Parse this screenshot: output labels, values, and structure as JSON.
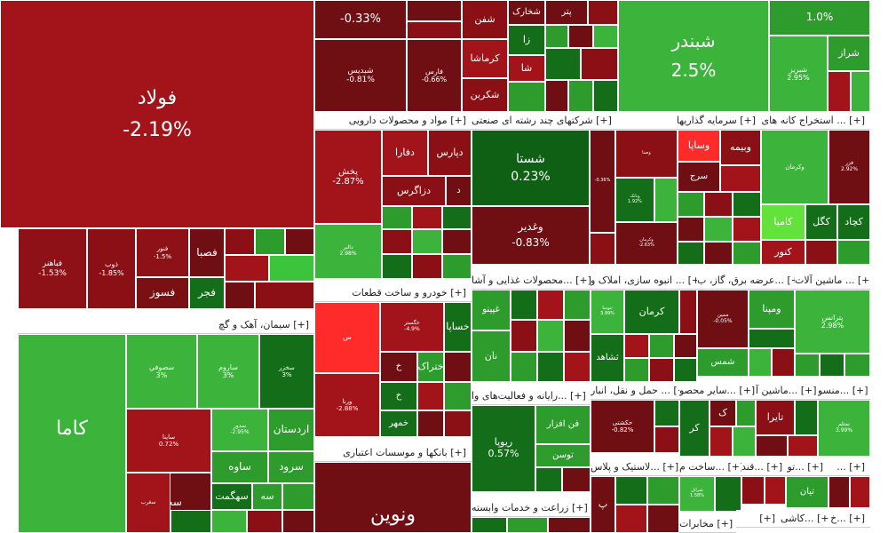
{
  "colors": {
    "deep_red": "#6f0f14",
    "red": "#a3141a",
    "bright_red": "#ff2b2b",
    "dark_green": "#0f5f14",
    "green": "#2d9c2d",
    "bright_green": "#3cc43c",
    "lime": "#62e23b"
  },
  "sections": [
    {
      "id": "pharma",
      "title": "مواد و محصولات دارویی [+]"
    },
    {
      "id": "multi",
      "title": "شرکتهای چند رشته ای صنعتی [+]"
    },
    {
      "id": "invest",
      "title": "سرمایه گذاریها [+]"
    },
    {
      "id": "mining",
      "title": "استخراج کانه های ... [+]"
    },
    {
      "id": "cement",
      "title": "سیمان، آهک و گچ [+]"
    },
    {
      "id": "auto",
      "title": "خودرو و ساخت قطعات [+]"
    },
    {
      "id": "food",
      "title": "محصولات غذایی و آشا... [+]"
    },
    {
      "id": "construction",
      "title": "انبوه سازی، املاک و ... [+]"
    },
    {
      "id": "electric",
      "title": "عرضه برق، گاز، ب... [+]"
    },
    {
      "id": "machinery",
      "title": "ماشین آلات ... [+]"
    },
    {
      "id": "it",
      "title": "رایانه و فعالیت‌های وا... [+]"
    },
    {
      "id": "transport",
      "title": "حمل و نقل، انبار ... [+]"
    },
    {
      "id": "other_products",
      "title": "سایر محصو... [+]"
    },
    {
      "id": "machinery2",
      "title": "ماشین آ... [+]"
    },
    {
      "id": "textile",
      "title": "منسو... [+]"
    },
    {
      "id": "banks",
      "title": "بانکها و موسسات اعتباری [+]"
    },
    {
      "id": "plastic",
      "title": "لاستیک و پلاس... [+]"
    },
    {
      "id": "construction2",
      "title": "ساخت م... [+]"
    },
    {
      "id": "sugar",
      "title": "قند... [+]"
    },
    {
      "id": "tile",
      "title": "کاشی... [+]"
    },
    {
      "id": "agri",
      "title": "زراعت و خدمات وابسته [+]"
    },
    {
      "id": "telecom",
      "title": "مخابرات [+]"
    },
    {
      "id": "kh",
      "title": "خ... [+]"
    },
    {
      "id": "to",
      "title": "تو... [+]"
    }
  ],
  "tiles": [
    {
      "id": "foolad",
      "name": "فولاد",
      "change": "-2.19%"
    },
    {
      "id": "shebandar",
      "name": "شبندر",
      "change": "2.5%"
    },
    {
      "id": "ghamrest",
      "name": "",
      "change": "-0.33%"
    },
    {
      "id": "top_right",
      "name": "",
      "change": "1.0%"
    },
    {
      "id": "shebris",
      "name": "شبریز",
      "change": "2.95%"
    },
    {
      "id": "shiraz",
      "name": "شراز",
      "change": ""
    },
    {
      "id": "shekaf",
      "name": "شفن",
      "change": ""
    },
    {
      "id": "shekhark",
      "name": "شخارک",
      "change": ""
    },
    {
      "id": "petr",
      "name": "پتر",
      "change": ""
    },
    {
      "id": "shedis",
      "name": "شبدیس",
      "change": "-0.81%"
    },
    {
      "id": "fars",
      "name": "فارس",
      "change": "-0.66%"
    },
    {
      "id": "kermasha",
      "name": "کرماشا",
      "change": ""
    },
    {
      "id": "shekarbon",
      "name": "شکربن",
      "change": ""
    },
    {
      "id": "za",
      "name": "زا",
      "change": ""
    },
    {
      "id": "sha",
      "name": "شا",
      "change": ""
    },
    {
      "id": "fakhoz",
      "name": "فباهنر",
      "change": "-1.53%"
    },
    {
      "id": "zob",
      "name": "ذوب",
      "change": "-1.85%"
    },
    {
      "id": "faslab",
      "name": "فصبا",
      "change": ""
    },
    {
      "id": "fasoz",
      "name": "فسوز",
      "change": ""
    },
    {
      "id": "fajr",
      "name": "فجر",
      "change": ""
    },
    {
      "id": "fnoor",
      "name": "فنور",
      "change": "-1.5%"
    },
    {
      "id": "dpakhsh",
      "name": "پخش",
      "change": "-2.87%"
    },
    {
      "id": "dfara",
      "name": "دفارا",
      "change": ""
    },
    {
      "id": "dpars",
      "name": "دپارس",
      "change": ""
    },
    {
      "id": "dzagros",
      "name": "دزاگرس",
      "change": ""
    },
    {
      "id": "dd",
      "name": "د",
      "change": ""
    },
    {
      "id": "dalbor",
      "name": "دالبر",
      "change": "2.98%"
    },
    {
      "id": "shasta",
      "name": "شستا",
      "change": "0.23%"
    },
    {
      "id": "vaghadir",
      "name": "وغدیر",
      "change": "-0.83%"
    },
    {
      "id": "vasapa",
      "name": "وساپا",
      "change": ""
    },
    {
      "id": "vasena",
      "name": "وصنا",
      "change": ""
    },
    {
      "id": "vabimeh",
      "name": "وبیمه",
      "change": "-2.93%"
    },
    {
      "id": "sarj",
      "name": "سرج",
      "change": ""
    },
    {
      "id": "vapars",
      "name": "وبانک",
      "change": "1.92%"
    },
    {
      "id": "vakerman",
      "name": "وکرمان",
      "change": ""
    },
    {
      "id": "fazar",
      "name": "فزر",
      "change": "2.92%"
    },
    {
      "id": "kamaia",
      "name": "کامیا",
      "change": "-0.09%"
    },
    {
      "id": "kegel",
      "name": "کگل",
      "change": ""
    },
    {
      "id": "kechad",
      "name": "کچاد",
      "change": ""
    },
    {
      "id": "kenor",
      "name": "کنور",
      "change": ""
    },
    {
      "id": "kama",
      "name": "کاما",
      "change": ""
    },
    {
      "id": "sofi",
      "name": "سصوفي",
      "change": "3%"
    },
    {
      "id": "saroom",
      "name": "ساروم",
      "change": "3%"
    },
    {
      "id": "sakhzar",
      "name": "سخزر",
      "change": "3%"
    },
    {
      "id": "sanik",
      "name": "ساینا",
      "change": "0.72%"
    },
    {
      "id": "sadoragh",
      "name": "سدور",
      "change": "-2.95%"
    },
    {
      "id": "sardasht",
      "name": "اردستان",
      "change": "2.95%"
    },
    {
      "id": "sakhooz",
      "name": "سخوز",
      "change": ""
    },
    {
      "id": "saveh",
      "name": "ساوه",
      "change": ""
    },
    {
      "id": "saroud",
      "name": "سرود",
      "change": ""
    },
    {
      "id": "saghrab",
      "name": "سغرب",
      "change": ""
    },
    {
      "id": "shahkam",
      "name": "سهگمت",
      "change": "-2.99%"
    },
    {
      "id": "sese",
      "name": "سه",
      "change": ""
    },
    {
      "id": "sesu",
      "name": "س",
      "change": ""
    },
    {
      "id": "khodro",
      "name": "خگستر",
      "change": "-4.9%"
    },
    {
      "id": "khsapa",
      "name": "خساپا",
      "change": "-3%"
    },
    {
      "id": "kh1",
      "name": "خ",
      "change": ""
    },
    {
      "id": "khatrak",
      "name": "ختراک",
      "change": ""
    },
    {
      "id": "kh2",
      "name": "خ",
      "change": ""
    },
    {
      "id": "khmehr",
      "name": "خمهر",
      "change": ""
    },
    {
      "id": "khtoghoo",
      "name": "ختوقا",
      "change": ""
    },
    {
      "id": "khvarna",
      "name": "ورنا",
      "change": "-2.88%"
    },
    {
      "id": "ghpino",
      "name": "غپینو",
      "change": ""
    },
    {
      "id": "ghnan",
      "name": "نان",
      "change": ""
    },
    {
      "id": "thenoob",
      "name": "ثنوسا",
      "change": "3.99%"
    },
    {
      "id": "kerman",
      "name": "کرمان",
      "change": ""
    },
    {
      "id": "tshahed",
      "name": "ثشاهد",
      "change": ""
    },
    {
      "id": "bmapna",
      "name": "ومپنا",
      "change": ""
    },
    {
      "id": "bmoo",
      "name": "ممین",
      "change": "-0.05%"
    },
    {
      "id": "shams",
      "name": "شمس",
      "change": ""
    },
    {
      "id": "ptrans",
      "name": "پترانس",
      "change": "2.98%"
    },
    {
      "id": "fanafzar",
      "name": "فن افزار",
      "change": ""
    },
    {
      "id": "rayavar",
      "name": "ریوپا",
      "change": "0.57%"
    },
    {
      "id": "toosan",
      "name": "توسن",
      "change": ""
    },
    {
      "id": "hakashti",
      "name": "حکشتی",
      "change": "-0.82%"
    },
    {
      "id": "kr",
      "name": "کر",
      "change": ""
    },
    {
      "id": "kk",
      "name": "ک",
      "change": ""
    },
    {
      "id": "taira",
      "name": "تایرا",
      "change": ""
    },
    {
      "id": "nmaa",
      "name": "نمتلم",
      "change": "3.99%"
    },
    {
      "id": "vanoin",
      "name": "ونوین",
      "change": ""
    },
    {
      "id": "pp",
      "name": "پ",
      "change": ""
    },
    {
      "id": "shesin",
      "name": "شرانل",
      "change": "1.58%"
    },
    {
      "id": "tiyan",
      "name": "تیان",
      "change": ""
    },
    {
      "id": "kashi_a",
      "name": "",
      "change": ""
    },
    {
      "id": "agri_a",
      "name": "",
      "change": ""
    }
  ]
}
